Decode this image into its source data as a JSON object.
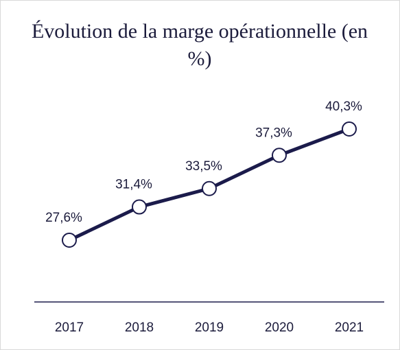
{
  "chart_data": {
    "type": "line",
    "title": "Évolution de la marge opérationnelle (en %)",
    "categories": [
      "2017",
      "2018",
      "2019",
      "2020",
      "2021"
    ],
    "series": [
      {
        "color": "#1b1b4b",
        "values": [
          27.6,
          31.4,
          33.5,
          37.3,
          40.3
        ],
        "value_labels": [
          "27,6%",
          "31,4%",
          "33,5%",
          "37,3%",
          "40,3%"
        ]
      }
    ],
    "ylim": [
      20,
      45
    ]
  }
}
